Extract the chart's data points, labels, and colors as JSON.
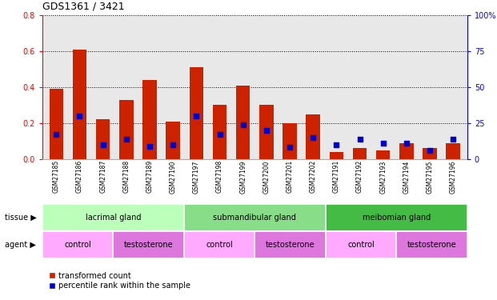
{
  "title": "GDS1361 / 3421",
  "samples": [
    "GSM27185",
    "GSM27186",
    "GSM27187",
    "GSM27188",
    "GSM27189",
    "GSM27190",
    "GSM27197",
    "GSM27198",
    "GSM27199",
    "GSM27200",
    "GSM27201",
    "GSM27202",
    "GSM27191",
    "GSM27192",
    "GSM27193",
    "GSM27194",
    "GSM27195",
    "GSM27196"
  ],
  "red_values": [
    0.39,
    0.61,
    0.22,
    0.33,
    0.44,
    0.21,
    0.51,
    0.3,
    0.41,
    0.3,
    0.2,
    0.25,
    0.04,
    0.06,
    0.05,
    0.09,
    0.06,
    0.09
  ],
  "blue_pct": [
    17,
    30,
    10,
    14,
    9,
    10,
    30,
    17,
    24,
    20,
    8,
    15,
    10,
    14,
    11,
    11,
    6,
    14
  ],
  "tissue_groups": [
    {
      "label": "lacrimal gland",
      "start": 0,
      "end": 6,
      "color": "#bbffbb"
    },
    {
      "label": "submandibular gland",
      "start": 6,
      "end": 12,
      "color": "#88dd88"
    },
    {
      "label": "meibomian gland",
      "start": 12,
      "end": 18,
      "color": "#44bb44"
    }
  ],
  "agent_groups": [
    {
      "label": "control",
      "start": 0,
      "end": 3,
      "color": "#ffaaff"
    },
    {
      "label": "testosterone",
      "start": 3,
      "end": 6,
      "color": "#dd77dd"
    },
    {
      "label": "control",
      "start": 6,
      "end": 9,
      "color": "#ffaaff"
    },
    {
      "label": "testosterone",
      "start": 9,
      "end": 12,
      "color": "#dd77dd"
    },
    {
      "label": "control",
      "start": 12,
      "end": 15,
      "color": "#ffaaff"
    },
    {
      "label": "testosterone",
      "start": 15,
      "end": 18,
      "color": "#dd77dd"
    }
  ],
  "ylim_left": [
    0,
    0.8
  ],
  "ylim_right": [
    0,
    100
  ],
  "yticks_left": [
    0,
    0.2,
    0.4,
    0.6,
    0.8
  ],
  "yticks_right": [
    0,
    25,
    50,
    75,
    100
  ],
  "bar_color": "#cc2200",
  "dot_color": "#0000cc",
  "bg_color": "#e8e8e8",
  "legend_red": "transformed count",
  "legend_blue": "percentile rank within the sample",
  "tissue_label": "tissue",
  "agent_label": "agent"
}
